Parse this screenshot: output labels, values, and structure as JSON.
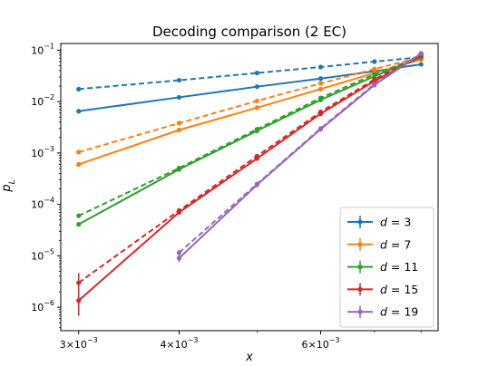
{
  "chart_data": {
    "type": "line",
    "title": "Decoding comparison (2 EC)",
    "xlabel": "x",
    "ylabel": "p_L",
    "xscale": "log",
    "yscale": "log",
    "xlim": [
      0.00285,
      0.0084
    ],
    "ylim": [
      3.5e-07,
      0.135
    ],
    "grid": false,
    "legend": "lower right",
    "x_ticks": [
      {
        "value": 0.003,
        "mant": "3",
        "exp": "−3"
      },
      {
        "value": 0.004,
        "mant": "4",
        "exp": "−3"
      },
      {
        "value": 0.006,
        "mant": "6",
        "exp": "−3"
      }
    ],
    "y_ticks": [
      {
        "value": 1e-06,
        "exp": "−6"
      },
      {
        "value": 1e-05,
        "exp": "−5"
      },
      {
        "value": 0.0001,
        "exp": "−4"
      },
      {
        "value": 0.001,
        "exp": "−3"
      },
      {
        "value": 0.01,
        "exp": "−2"
      },
      {
        "value": 0.1,
        "exp": "−1"
      }
    ],
    "series": [
      {
        "name": "d = 3",
        "d": "3",
        "color": "#1f77b4",
        "x": [
          0.003,
          0.004,
          0.005,
          0.006,
          0.007,
          0.008
        ],
        "solid": [
          0.0065,
          0.0121,
          0.0195,
          0.028,
          0.039,
          0.053
        ],
        "dashed": [
          0.0175,
          0.026,
          0.036,
          0.047,
          0.06,
          0.073
        ],
        "x_dashed": [
          0.003,
          0.004,
          0.005,
          0.006,
          0.007,
          0.008
        ]
      },
      {
        "name": "d = 7",
        "d": "7",
        "color": "#ff7f0e",
        "x": [
          0.003,
          0.004,
          0.005,
          0.006,
          0.007,
          0.008
        ],
        "solid": [
          0.0006,
          0.0028,
          0.0076,
          0.0175,
          0.036,
          0.066
        ],
        "dashed": [
          0.00104,
          0.0038,
          0.0103,
          0.0225,
          0.043,
          0.073
        ],
        "x_dashed": [
          0.003,
          0.004,
          0.005,
          0.006,
          0.007,
          0.008
        ]
      },
      {
        "name": "d = 11",
        "d": "11",
        "color": "#2ca02c",
        "x": [
          0.003,
          0.004,
          0.005,
          0.006,
          0.007,
          0.008
        ],
        "solid": [
          4.1e-05,
          0.00048,
          0.0027,
          0.0108,
          0.031,
          0.072
        ],
        "dashed": [
          6e-05,
          0.00051,
          0.0029,
          0.0118,
          0.034,
          0.076
        ],
        "x_dashed": [
          0.003,
          0.004,
          0.005,
          0.006,
          0.007,
          0.008
        ]
      },
      {
        "name": "d = 15",
        "d": "15",
        "color": "#d62728",
        "x": [
          0.003,
          0.004,
          0.005,
          0.006,
          0.007,
          0.008
        ],
        "solid": [
          1.35e-06,
          7e-05,
          0.00078,
          0.0058,
          0.025,
          0.078
        ],
        "dashed": [
          3e-06,
          7.6e-05,
          0.00087,
          0.0063,
          0.027,
          0.08
        ],
        "x_dashed": [
          0.003,
          0.004,
          0.005,
          0.006,
          0.007,
          0.008
        ],
        "solid_err": [
          [
            6.8e-07,
            2.6e-06
          ],
          null,
          null,
          null,
          null,
          null
        ],
        "dashed_err": [
          [
            1.9e-06,
            4.6e-06
          ],
          null,
          null,
          null,
          null,
          null
        ]
      },
      {
        "name": "d = 19",
        "d": "19",
        "color": "#9467bd",
        "x": [
          0.004,
          0.005,
          0.006,
          0.007,
          0.008
        ],
        "solid": [
          9e-06,
          0.00024,
          0.0029,
          0.021,
          0.086
        ],
        "dashed": [
          1.15e-05,
          0.00025,
          0.003,
          0.022,
          0.087
        ],
        "x_dashed": [
          0.004,
          0.005,
          0.006,
          0.007,
          0.008
        ],
        "solid_err": [
          [
            7.6e-06,
            1.06e-05
          ],
          null,
          null,
          null,
          null
        ],
        "dashed_err": [
          [
            9.8e-06,
            1.32e-05
          ],
          null,
          null,
          null,
          null
        ]
      }
    ]
  }
}
